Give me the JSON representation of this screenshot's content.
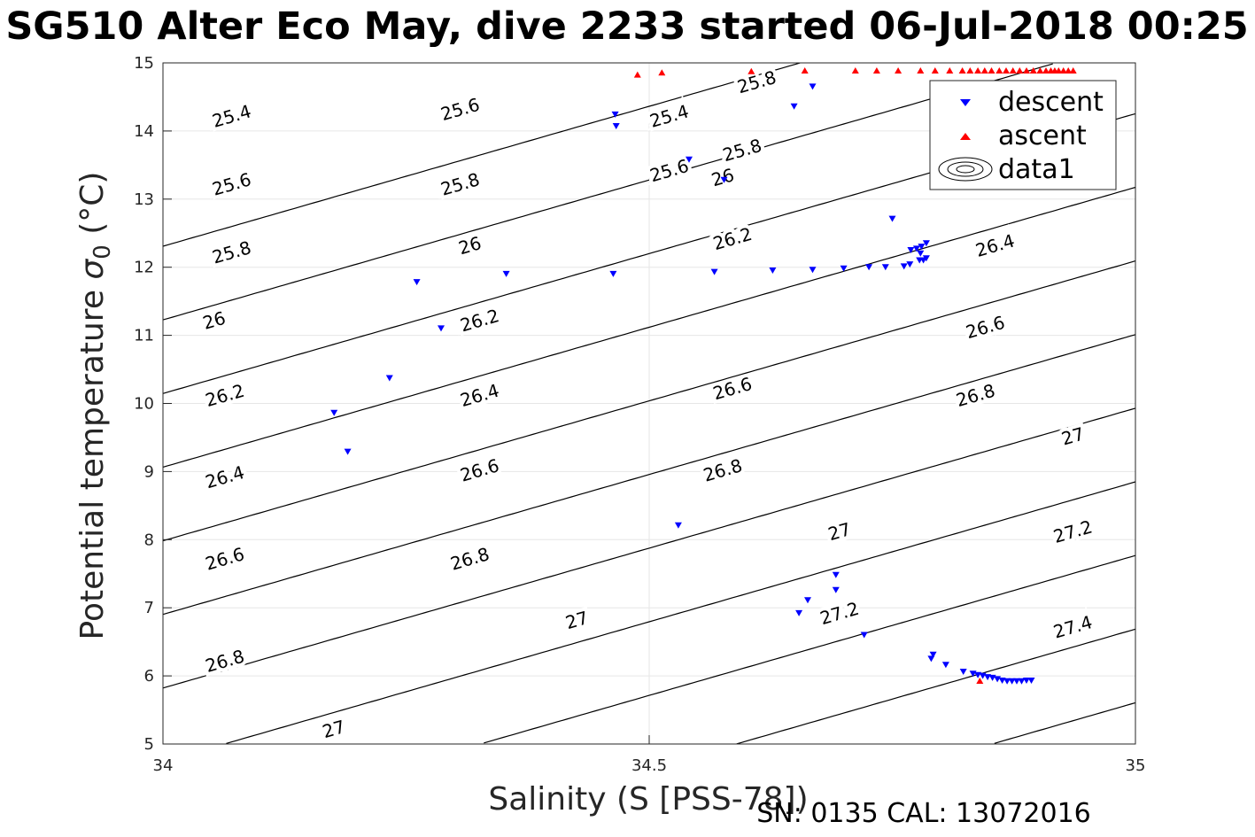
{
  "chart_data": {
    "type": "scatter",
    "title": "SG510 Alter Eco May, dive 2233 started 06-Jul-2018 00:25",
    "xlabel": "Salinity (S [PSS-78])",
    "ylabel_main": "Potential temperature ",
    "ylabel_sigma": "σ",
    "ylabel_sub": "0",
    "ylabel_unit": " (°C)",
    "xlim": [
      34,
      35
    ],
    "ylim": [
      5,
      15
    ],
    "x_ticks": [
      "34",
      "34.5",
      "35"
    ],
    "y_ticks": [
      "5",
      "6",
      "7",
      "8",
      "9",
      "10",
      "11",
      "12",
      "13",
      "14",
      "15"
    ],
    "grid": true,
    "legend_position": "top-right",
    "footer": "SN: 0135  CAL: 13072016",
    "colors": {
      "descent": "#0000ff",
      "ascent": "#ff0000",
      "contour": "#000000",
      "grid": "#e6e6e6"
    },
    "series": [
      {
        "name": "descent",
        "marker": "triangle-down",
        "color": "#0000ff",
        "points": [
          [
            34.465,
            14.24
          ],
          [
            34.466,
            14.07
          ],
          [
            34.649,
            14.36
          ],
          [
            34.668,
            14.65
          ],
          [
            34.541,
            13.58
          ],
          [
            34.577,
            13.28
          ],
          [
            34.261,
            11.78
          ],
          [
            34.353,
            11.9
          ],
          [
            34.463,
            11.9
          ],
          [
            34.567,
            11.93
          ],
          [
            34.627,
            11.95
          ],
          [
            34.668,
            11.96
          ],
          [
            34.7,
            11.98
          ],
          [
            34.726,
            12.0
          ],
          [
            34.743,
            12.0
          ],
          [
            34.762,
            12.01
          ],
          [
            34.768,
            12.04
          ],
          [
            34.778,
            12.1
          ],
          [
            34.785,
            12.13
          ],
          [
            34.769,
            12.25
          ],
          [
            34.775,
            12.27
          ],
          [
            34.78,
            12.3
          ],
          [
            34.785,
            12.35
          ],
          [
            34.779,
            12.2
          ],
          [
            34.782,
            12.1
          ],
          [
            34.75,
            12.71
          ],
          [
            34.286,
            11.1
          ],
          [
            34.233,
            10.37
          ],
          [
            34.176,
            9.86
          ],
          [
            34.19,
            9.29
          ],
          [
            34.53,
            8.21
          ],
          [
            34.692,
            7.48
          ],
          [
            34.692,
            7.26
          ],
          [
            34.663,
            7.11
          ],
          [
            34.654,
            6.92
          ],
          [
            34.721,
            6.6
          ],
          [
            34.792,
            6.31
          ],
          [
            34.79,
            6.25
          ],
          [
            34.805,
            6.16
          ],
          [
            34.823,
            6.06
          ],
          [
            34.833,
            6.03
          ],
          [
            34.838,
            6.01
          ],
          [
            34.843,
            6.0
          ],
          [
            34.848,
            5.98
          ],
          [
            34.853,
            5.97
          ],
          [
            34.858,
            5.95
          ],
          [
            34.863,
            5.93
          ],
          [
            34.868,
            5.92
          ],
          [
            34.873,
            5.92
          ],
          [
            34.878,
            5.92
          ],
          [
            34.883,
            5.92
          ],
          [
            34.888,
            5.93
          ],
          [
            34.893,
            5.93
          ]
        ]
      },
      {
        "name": "ascent",
        "marker": "triangle-up",
        "color": "#ff0000",
        "points": [
          [
            34.488,
            14.83
          ],
          [
            34.513,
            14.86
          ],
          [
            34.605,
            14.88
          ],
          [
            34.66,
            14.89
          ],
          [
            34.712,
            14.89
          ],
          [
            34.734,
            14.89
          ],
          [
            34.756,
            14.89
          ],
          [
            34.779,
            14.89
          ],
          [
            34.794,
            14.89
          ],
          [
            34.809,
            14.89
          ],
          [
            34.822,
            14.89
          ],
          [
            34.83,
            14.89
          ],
          [
            34.838,
            14.89
          ],
          [
            34.845,
            14.89
          ],
          [
            34.852,
            14.89
          ],
          [
            34.86,
            14.89
          ],
          [
            34.867,
            14.89
          ],
          [
            34.874,
            14.89
          ],
          [
            34.881,
            14.89
          ],
          [
            34.888,
            14.89
          ],
          [
            34.895,
            14.89
          ],
          [
            34.902,
            14.89
          ],
          [
            34.908,
            14.89
          ],
          [
            34.913,
            14.89
          ],
          [
            34.917,
            14.89
          ],
          [
            34.921,
            14.89
          ],
          [
            34.926,
            14.89
          ],
          [
            34.931,
            14.89
          ],
          [
            34.936,
            14.89
          ],
          [
            34.84,
            5.93
          ]
        ]
      }
    ],
    "contours": {
      "name": "data1",
      "levels": [
        "25.4",
        "25.6",
        "25.8",
        "26",
        "26.2",
        "26.4",
        "26.6",
        "26.8",
        "27",
        "27.2",
        "27.4"
      ],
      "label_values": [
        [
          "25.4",
          34.071,
          14.2
        ],
        [
          "25.4",
          34.521,
          14.2
        ],
        [
          "25.6",
          34.071,
          13.2
        ],
        [
          "25.6",
          34.306,
          14.3
        ],
        [
          "25.6",
          34.521,
          13.4
        ],
        [
          "25.6",
          34.836,
          14.5
        ],
        [
          "25.8",
          34.071,
          12.2
        ],
        [
          "25.8",
          34.306,
          13.2
        ],
        [
          "25.8",
          34.611,
          14.7
        ],
        [
          "25.8",
          34.596,
          13.7
        ],
        [
          "26",
          34.053,
          11.2
        ],
        [
          "26",
          34.316,
          12.3
        ],
        [
          "26",
          34.576,
          13.3
        ],
        [
          "26.2",
          34.064,
          10.1
        ],
        [
          "26.2",
          34.326,
          11.2
        ],
        [
          "26.2",
          34.586,
          12.4
        ],
        [
          "26.4",
          34.064,
          8.9
        ],
        [
          "26.4",
          34.326,
          10.1
        ],
        [
          "26.4",
          34.856,
          12.3
        ],
        [
          "26.6",
          34.064,
          7.7
        ],
        [
          "26.6",
          34.326,
          9.0
        ],
        [
          "26.6",
          34.586,
          10.2
        ],
        [
          "26.6",
          34.846,
          11.1
        ],
        [
          "26.8",
          34.064,
          6.2
        ],
        [
          "26.8",
          34.316,
          7.7
        ],
        [
          "26.8",
          34.576,
          9.0
        ],
        [
          "26.8",
          34.836,
          10.1
        ],
        [
          "27",
          34.176,
          5.2
        ],
        [
          "27",
          34.426,
          6.8
        ],
        [
          "27",
          34.696,
          8.1
        ],
        [
          "27",
          34.936,
          9.5
        ],
        [
          "27.2",
          34.696,
          6.9
        ],
        [
          "27.2",
          34.936,
          8.1
        ],
        [
          "27.4",
          34.936,
          6.7
        ]
      ]
    }
  }
}
